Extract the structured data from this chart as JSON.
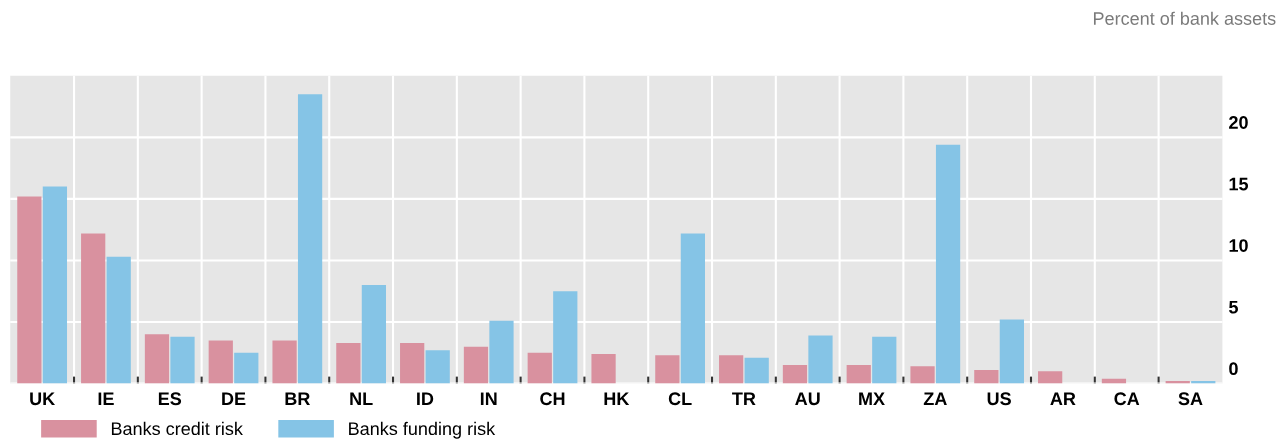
{
  "chart_data": {
    "type": "bar",
    "ylabel": "Percent of bank assets",
    "categories": [
      "UK",
      "IE",
      "ES",
      "DE",
      "BR",
      "NL",
      "ID",
      "IN",
      "CH",
      "HK",
      "CL",
      "TR",
      "AU",
      "MX",
      "ZA",
      "US",
      "AR",
      "CA",
      "SA"
    ],
    "series": [
      {
        "name": "Banks credit risk",
        "color": "#d9919f",
        "values": [
          15.2,
          12.2,
          4.0,
          3.5,
          3.5,
          3.3,
          3.3,
          3.0,
          2.5,
          2.4,
          2.3,
          2.3,
          1.5,
          1.5,
          1.4,
          1.1,
          1.0,
          0.4,
          0.2
        ]
      },
      {
        "name": "Banks funding risk",
        "color": "#85c4e6",
        "values": [
          16.0,
          10.3,
          3.8,
          2.5,
          23.5,
          8.0,
          2.7,
          5.1,
          7.5,
          null,
          12.2,
          2.1,
          3.9,
          3.8,
          19.4,
          5.2,
          null,
          null,
          0.2
        ]
      }
    ],
    "ylim": [
      0,
      25
    ],
    "yticks": [
      0,
      5,
      10,
      15,
      20
    ],
    "grid": true,
    "legend": "bottom left"
  }
}
